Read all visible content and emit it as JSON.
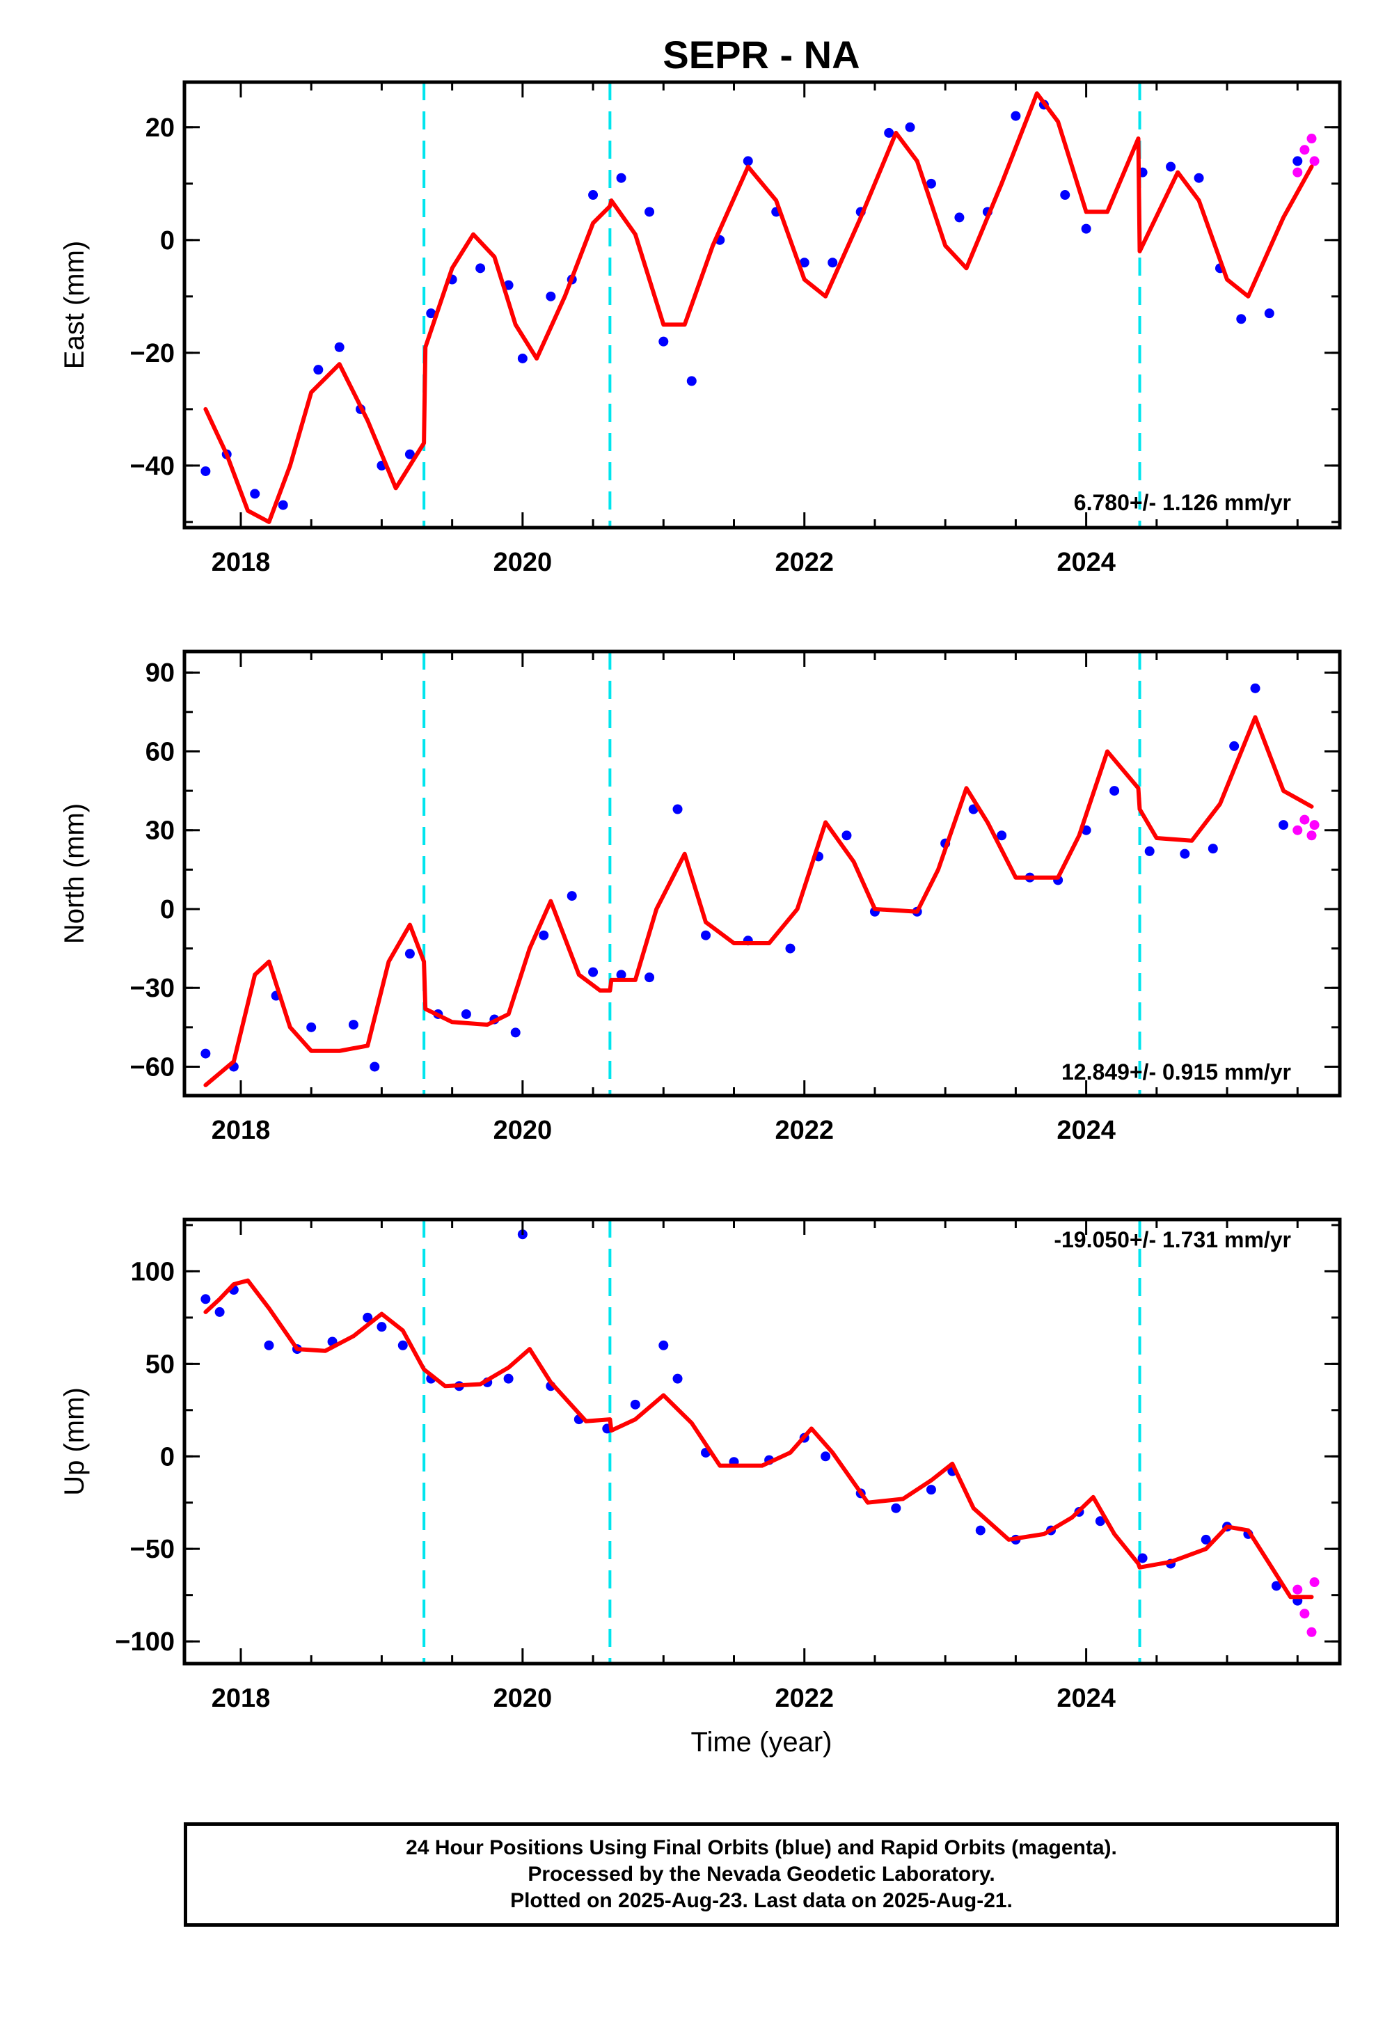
{
  "figure": {
    "title": "SEPR - NA",
    "xlabel": "Time (year)",
    "footer": [
      "24 Hour Positions Using Final Orbits (blue) and Rapid Orbits (magenta).",
      "Processed by the Nevada Geodetic Laboratory.",
      "Plotted on 2025-Aug-23. Last data on 2025-Aug-21."
    ],
    "colors": {
      "final_orbits": "#0000ff",
      "rapid_orbits": "#ff00ff",
      "model": "#ff0000",
      "offsets": "#00e5ee"
    }
  },
  "chart_data": [
    {
      "type": "scatter",
      "ylabel": "East (mm)",
      "xlim": [
        2017.6,
        2025.8
      ],
      "ylim": [
        -51,
        28
      ],
      "xticks": [
        2018,
        2020,
        2022,
        2024
      ],
      "xtick_labels": [
        "2018",
        "2020",
        "2022",
        "2024"
      ],
      "yticks": [
        -40,
        -20,
        0,
        20
      ],
      "ytick_labels": [
        "−40",
        "−20",
        "0",
        "20"
      ],
      "rate": "6.780+/- 1.126 mm/yr",
      "offsets": [
        2019.3,
        2020.62,
        2024.38
      ],
      "model": {
        "x": [
          2017.75,
          2017.9,
          2018.05,
          2018.2,
          2018.35,
          2018.5,
          2018.7,
          2018.9,
          2019.1,
          2019.3,
          2019.31,
          2019.5,
          2019.65,
          2019.8,
          2019.95,
          2020.1,
          2020.3,
          2020.5,
          2020.62,
          2020.63,
          2020.8,
          2021.0,
          2021.15,
          2021.35,
          2021.6,
          2021.8,
          2022.0,
          2022.15,
          2022.4,
          2022.65,
          2022.8,
          2023.0,
          2023.15,
          2023.4,
          2023.65,
          2023.8,
          2024.0,
          2024.15,
          2024.37,
          2024.38,
          2024.65,
          2024.8,
          2025.0,
          2025.15,
          2025.4,
          2025.6
        ],
        "y": [
          -30,
          -38,
          -48,
          -50,
          -40,
          -27,
          -22,
          -32,
          -44,
          -36,
          -19,
          -5,
          1,
          -3,
          -15,
          -21,
          -10,
          3,
          6,
          7,
          1,
          -15,
          -15,
          -1,
          13,
          7,
          -7,
          -10,
          4,
          19,
          14,
          -1,
          -5,
          10,
          26,
          21,
          5,
          5,
          18,
          -2,
          12,
          7,
          -7,
          -10,
          4,
          13
        ]
      },
      "final_orbits": {
        "x": [
          2017.75,
          2017.9,
          2018.1,
          2018.3,
          2018.55,
          2018.7,
          2018.85,
          2019.0,
          2019.2,
          2019.35,
          2019.5,
          2019.7,
          2019.9,
          2020.0,
          2020.2,
          2020.35,
          2020.5,
          2020.7,
          2020.9,
          2021.0,
          2021.2,
          2021.4,
          2021.6,
          2021.8,
          2022.0,
          2022.2,
          2022.4,
          2022.6,
          2022.75,
          2022.9,
          2023.1,
          2023.3,
          2023.5,
          2023.7,
          2023.85,
          2024.0,
          2024.4,
          2024.6,
          2024.8,
          2024.95,
          2025.1,
          2025.3,
          2025.5
        ],
        "y": [
          -41,
          -38,
          -45,
          -47,
          -23,
          -19,
          -30,
          -40,
          -38,
          -13,
          -7,
          -5,
          -8,
          -21,
          -10,
          -7,
          8,
          11,
          5,
          -18,
          -25,
          0,
          14,
          5,
          -4,
          -4,
          5,
          19,
          20,
          10,
          4,
          5,
          22,
          24,
          8,
          2,
          12,
          13,
          11,
          -5,
          -14,
          -13,
          14
        ]
      },
      "rapid_orbits": {
        "x": [
          2025.5,
          2025.55,
          2025.6,
          2025.62
        ],
        "y": [
          12,
          16,
          18,
          14
        ]
      }
    },
    {
      "type": "scatter",
      "ylabel": "North (mm)",
      "xlim": [
        2017.6,
        2025.8
      ],
      "ylim": [
        -71,
        98
      ],
      "xticks": [
        2018,
        2020,
        2022,
        2024
      ],
      "xtick_labels": [
        "2018",
        "2020",
        "2022",
        "2024"
      ],
      "yticks": [
        -60,
        -30,
        0,
        30,
        60,
        90
      ],
      "ytick_labels": [
        "−60",
        "−30",
        "0",
        "30",
        "60",
        "90"
      ],
      "rate": "12.849+/- 0.915 mm/yr",
      "offsets": [
        2019.3,
        2020.62,
        2024.38
      ],
      "model": {
        "x": [
          2017.75,
          2017.95,
          2018.1,
          2018.2,
          2018.35,
          2018.5,
          2018.7,
          2018.9,
          2019.05,
          2019.2,
          2019.3,
          2019.31,
          2019.5,
          2019.75,
          2019.9,
          2020.05,
          2020.2,
          2020.4,
          2020.55,
          2020.62,
          2020.63,
          2020.8,
          2020.95,
          2021.15,
          2021.3,
          2021.5,
          2021.75,
          2021.95,
          2022.15,
          2022.35,
          2022.5,
          2022.8,
          2022.95,
          2023.15,
          2023.3,
          2023.5,
          2023.8,
          2023.95,
          2024.15,
          2024.37,
          2024.38,
          2024.5,
          2024.75,
          2024.95,
          2025.2,
          2025.4,
          2025.6
        ],
        "y": [
          -67,
          -58,
          -25,
          -20,
          -45,
          -54,
          -54,
          -52,
          -20,
          -6,
          -20,
          -38,
          -43,
          -44,
          -40,
          -15,
          3,
          -25,
          -31,
          -31,
          -27,
          -27,
          0,
          21,
          -5,
          -13,
          -13,
          0,
          33,
          18,
          0,
          -1,
          15,
          46,
          33,
          12,
          12,
          28,
          60,
          46,
          38,
          27,
          26,
          40,
          73,
          45,
          39
        ]
      },
      "final_orbits": {
        "x": [
          2017.75,
          2017.95,
          2018.25,
          2018.5,
          2018.8,
          2018.95,
          2019.2,
          2019.4,
          2019.6,
          2019.8,
          2019.95,
          2020.15,
          2020.35,
          2020.5,
          2020.7,
          2020.9,
          2021.1,
          2021.3,
          2021.6,
          2021.9,
          2022.1,
          2022.3,
          2022.5,
          2022.8,
          2023.0,
          2023.2,
          2023.4,
          2023.6,
          2023.8,
          2024.0,
          2024.2,
          2024.45,
          2024.7,
          2024.9,
          2025.05,
          2025.2,
          2025.4
        ],
        "y": [
          -55,
          -60,
          -33,
          -45,
          -44,
          -60,
          -17,
          -40,
          -40,
          -42,
          -47,
          -10,
          5,
          -24,
          -25,
          -26,
          38,
          -10,
          -12,
          -15,
          20,
          28,
          -1,
          -1,
          25,
          38,
          28,
          12,
          11,
          30,
          45,
          22,
          21,
          23,
          62,
          84,
          32
        ]
      },
      "rapid_orbits": {
        "x": [
          2025.5,
          2025.55,
          2025.6,
          2025.62
        ],
        "y": [
          30,
          34,
          28,
          32
        ]
      }
    },
    {
      "type": "scatter",
      "ylabel": "Up (mm)",
      "xlim": [
        2017.6,
        2025.8
      ],
      "ylim": [
        -112,
        128
      ],
      "xticks": [
        2018,
        2020,
        2022,
        2024
      ],
      "xtick_labels": [
        "2018",
        "2020",
        "2022",
        "2024"
      ],
      "yticks": [
        -100,
        -50,
        0,
        50,
        100
      ],
      "ytick_labels": [
        "−100",
        "−50",
        "0",
        "50",
        "100"
      ],
      "rate": "-19.050+/- 1.731 mm/yr",
      "offsets": [
        2019.3,
        2020.62,
        2024.38
      ],
      "model": {
        "x": [
          2017.75,
          2017.85,
          2017.95,
          2018.05,
          2018.2,
          2018.4,
          2018.6,
          2018.8,
          2019.0,
          2019.15,
          2019.3,
          2019.45,
          2019.7,
          2019.9,
          2020.05,
          2020.2,
          2020.45,
          2020.62,
          2020.63,
          2020.8,
          2021.0,
          2021.2,
          2021.4,
          2021.7,
          2021.9,
          2022.05,
          2022.2,
          2022.45,
          2022.7,
          2022.9,
          2023.05,
          2023.2,
          2023.45,
          2023.7,
          2023.9,
          2024.05,
          2024.2,
          2024.37,
          2024.38,
          2024.6,
          2024.85,
          2025.0,
          2025.15,
          2025.3,
          2025.45,
          2025.6
        ],
        "y": [
          78,
          85,
          93,
          95,
          80,
          58,
          57,
          65,
          77,
          68,
          47,
          38,
          39,
          48,
          58,
          40,
          19,
          20,
          14,
          20,
          33,
          18,
          -5,
          -5,
          2,
          15,
          2,
          -25,
          -23,
          -13,
          -4,
          -28,
          -45,
          -42,
          -33,
          -22,
          -42,
          -58,
          -60,
          -57,
          -50,
          -38,
          -40,
          -58,
          -76,
          -76
        ]
      },
      "final_orbits": {
        "x": [
          2017.75,
          2017.85,
          2017.95,
          2018.2,
          2018.4,
          2018.65,
          2018.9,
          2019.0,
          2019.15,
          2019.35,
          2019.55,
          2019.75,
          2019.9,
          2020.0,
          2020.2,
          2020.4,
          2020.6,
          2020.8,
          2021.0,
          2021.1,
          2021.3,
          2021.5,
          2021.75,
          2022.0,
          2022.15,
          2022.4,
          2022.65,
          2022.9,
          2023.05,
          2023.25,
          2023.5,
          2023.75,
          2023.95,
          2024.1,
          2024.4,
          2024.6,
          2024.85,
          2025.0,
          2025.15,
          2025.35,
          2025.5
        ],
        "y": [
          85,
          78,
          90,
          60,
          58,
          62,
          75,
          70,
          60,
          42,
          38,
          40,
          42,
          120,
          38,
          20,
          15,
          28,
          60,
          42,
          2,
          -3,
          -2,
          10,
          0,
          -20,
          -28,
          -18,
          -8,
          -40,
          -45,
          -40,
          -30,
          -35,
          -55,
          -58,
          -45,
          -38,
          -42,
          -70,
          -78
        ]
      },
      "rapid_orbits": {
        "x": [
          2025.5,
          2025.55,
          2025.6,
          2025.62
        ],
        "y": [
          -72,
          -85,
          -95,
          -68
        ]
      }
    }
  ]
}
